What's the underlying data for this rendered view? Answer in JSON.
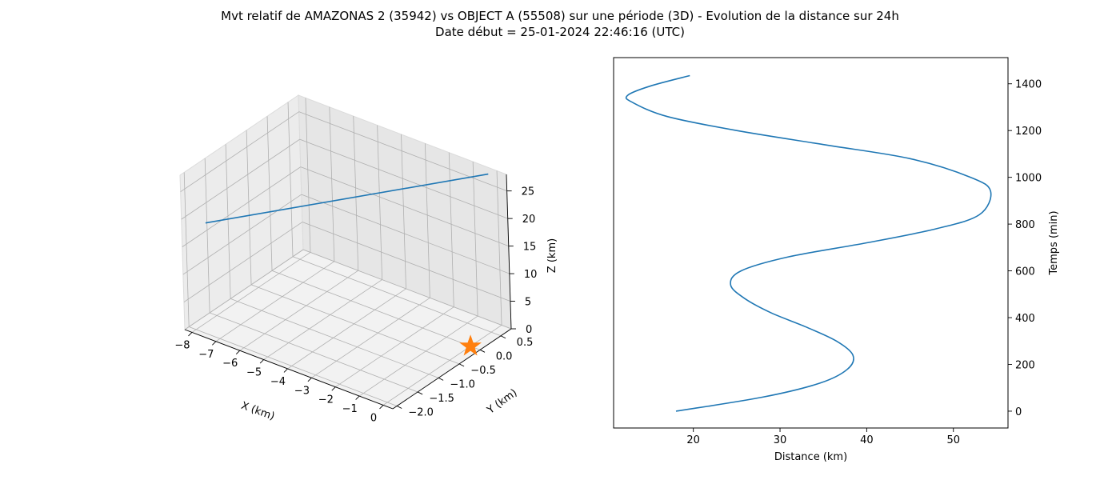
{
  "figure": {
    "title_line1": "Mvt relatif de AMAZONAS 2 (35942) vs OBJECT A (55508) sur une période (3D) - Evolution de la distance sur 24h",
    "title_line2": "Date début = 25-01-2024 22:46:16 (UTC)"
  },
  "colors": {
    "series": "#1f77b4",
    "marker": "#ff7f0e"
  },
  "chart_data": [
    {
      "type": "line3d",
      "xlabel": "X (km)",
      "ylabel": "Y (km)",
      "zlabel": "Z (km)",
      "xlim": [
        -8.3,
        0.4
      ],
      "ylim": [
        -2.1,
        0.75
      ],
      "zlim": [
        0,
        28
      ],
      "x_ticks": [
        -8,
        -7,
        -6,
        -5,
        -4,
        -3,
        -2,
        -1,
        0
      ],
      "x_tick_labels": [
        "−8",
        "−7",
        "−6",
        "−5",
        "−4",
        "−3",
        "−2",
        "−1",
        "0"
      ],
      "y_ticks": [
        -2.0,
        -1.5,
        -1.0,
        -0.5,
        0.0,
        0.5
      ],
      "y_tick_labels": [
        "−2.0",
        "−1.5",
        "−1.0",
        "−0.5",
        "0.0",
        "0.5"
      ],
      "z_ticks": [
        0,
        5,
        10,
        15,
        20,
        25
      ],
      "z_tick_labels": [
        "0",
        "5",
        "10",
        "15",
        "20",
        "25"
      ],
      "grid": true,
      "series": [
        {
          "x": [
            -8.0,
            -0.1
          ],
          "y": [
            -1.7,
            0.6
          ],
          "z": [
            17.8,
            28.0
          ]
        }
      ],
      "marker": {
        "symbol": "star",
        "x": 0,
        "y": 0,
        "z": 0
      }
    },
    {
      "type": "line",
      "xlabel": "Distance (km)",
      "ylabel": "Temps (min)",
      "xlim": [
        10.8,
        56.3
      ],
      "ylim": [
        -72,
        1512
      ],
      "x_ticks": [
        20,
        30,
        40,
        50
      ],
      "y_ticks": [
        0,
        200,
        400,
        600,
        800,
        1000,
        1200,
        1400
      ],
      "grid": false,
      "y_axis_position": "right",
      "series": [
        {
          "distance": [
            18.0,
            28.0,
            34.6,
            37.8,
            38.4,
            36.5,
            33.0,
            29.0,
            26.0,
            24.3,
            25.5,
            31.0,
            40.0,
            48.0,
            53.0,
            54.3,
            52.0,
            45.0,
            35.0,
            25.0,
            17.0,
            13.0,
            12.4,
            15.0,
            19.6
          ],
          "time": [
            0,
            60,
            120,
            180,
            240,
            300,
            360,
            420,
            480,
            540,
            600,
            660,
            720,
            780,
            840,
            940,
            1000,
            1080,
            1140,
            1200,
            1260,
            1320,
            1350,
            1390,
            1435
          ]
        }
      ]
    }
  ]
}
